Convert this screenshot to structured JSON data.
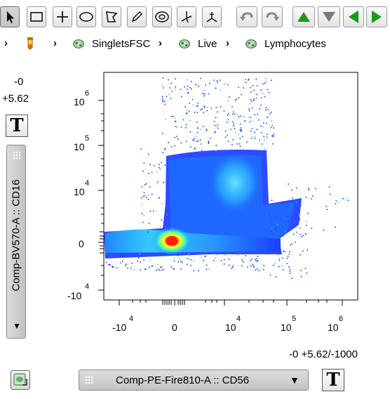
{
  "toolbar": {
    "tools": [
      "pointer-tool",
      "rectangle-gate-tool",
      "quadrant-gate-tool",
      "ellipse-gate-tool",
      "polygon-gate-tool",
      "freehand-gate-tool",
      "boolean-gate-tool",
      "spider-gate-tool",
      "web-gate-tool"
    ],
    "nav": [
      "undo",
      "redo",
      "up",
      "down",
      "previous",
      "next"
    ]
  },
  "breadcrumb": {
    "items": [
      "SingletsFSC",
      "Live",
      "Lymphocytes"
    ]
  },
  "y_axis": {
    "transform_top": "-0",
    "transform_bottom": "+5.62",
    "parameter": "Comp-BV570-A :: CD16",
    "ticks": [
      {
        "base": "10",
        "exp": "6"
      },
      {
        "base": "10",
        "exp": "5"
      },
      {
        "base": "10",
        "exp": "4"
      },
      {
        "base": "0",
        "exp": ""
      },
      {
        "base": "-10",
        "exp": "4"
      }
    ]
  },
  "x_axis": {
    "transform": "-0 +5.62/-1000",
    "parameter": "Comp-PE-Fire810-A :: CD56",
    "ticks": [
      {
        "base": "-10",
        "exp": "4"
      },
      {
        "base": "0",
        "exp": ""
      },
      {
        "base": "10",
        "exp": "4"
      },
      {
        "base": "10",
        "exp": "5"
      },
      {
        "base": "10",
        "exp": "6"
      }
    ]
  },
  "buttons": {
    "text_glyph": "T",
    "dropdown_glyph": "▼"
  },
  "colors": {
    "accent_green": "#1a9a1a",
    "density_low": "#1f3cff",
    "density_mid": "#38c8ff",
    "density_high": "#ff2a00"
  }
}
